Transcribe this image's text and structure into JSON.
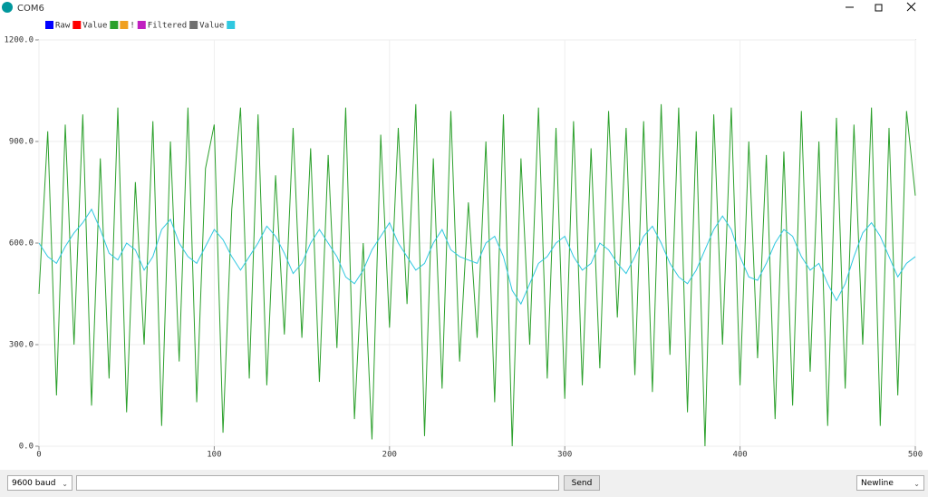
{
  "window": {
    "title": "COM6",
    "baud": "9600 baud",
    "send": "Send",
    "line_ending": "Newline"
  },
  "chart_data": {
    "type": "line",
    "series": [
      {
        "name": "Raw",
        "color": "#0000ff",
        "values": null
      },
      {
        "name": "Value",
        "color": "#ff0000",
        "values": null
      },
      {
        "name": null,
        "color": "#2ca02c",
        "values": [
          450,
          930,
          150,
          950,
          300,
          980,
          120,
          850,
          200,
          1000,
          100,
          780,
          300,
          960,
          60,
          900,
          250,
          1000,
          130,
          820,
          950,
          40,
          700,
          1000,
          200,
          980,
          180,
          800,
          330,
          940,
          320,
          880,
          190,
          860,
          290,
          1000,
          80,
          600,
          20,
          920,
          350,
          940,
          420,
          1010,
          30,
          850,
          170,
          990,
          250,
          720,
          320,
          900,
          130,
          980,
          0,
          850,
          300,
          1000,
          200,
          940,
          140,
          960,
          180,
          880,
          230,
          990,
          380,
          940,
          210,
          960,
          160,
          1010,
          270,
          1000,
          100,
          930,
          0,
          980,
          300,
          1000,
          180,
          900,
          260,
          860,
          80,
          870,
          120,
          990,
          220,
          900,
          60,
          970,
          170,
          950,
          300,
          1000,
          60,
          940,
          150,
          990,
          740
        ]
      },
      {
        "name": "!",
        "color": "#f0a020",
        "values": null
      },
      {
        "name": "Filtered",
        "color": "#c020c0",
        "values": null
      },
      {
        "name": "Value",
        "color": "#707070",
        "values": null
      },
      {
        "name": null,
        "color": "#30c8e0",
        "values": [
          600,
          560,
          540,
          590,
          630,
          660,
          700,
          640,
          570,
          550,
          600,
          580,
          520,
          560,
          640,
          670,
          600,
          560,
          540,
          590,
          640,
          610,
          560,
          520,
          560,
          600,
          650,
          620,
          570,
          510,
          540,
          600,
          640,
          600,
          560,
          500,
          480,
          520,
          580,
          620,
          660,
          600,
          560,
          520,
          540,
          600,
          640,
          580,
          560,
          550,
          540,
          600,
          620,
          560,
          460,
          420,
          480,
          540,
          560,
          600,
          620,
          560,
          520,
          540,
          600,
          580,
          540,
          510,
          560,
          620,
          650,
          600,
          540,
          500,
          480,
          520,
          580,
          640,
          680,
          640,
          560,
          500,
          490,
          540,
          600,
          640,
          620,
          560,
          520,
          540,
          480,
          430,
          480,
          560,
          630,
          660,
          620,
          560,
          500,
          540,
          560
        ]
      }
    ],
    "x": [
      0,
      5,
      10,
      15,
      20,
      25,
      30,
      35,
      40,
      45,
      50,
      55,
      60,
      65,
      70,
      75,
      80,
      85,
      90,
      95,
      100,
      105,
      110,
      115,
      120,
      125,
      130,
      135,
      140,
      145,
      150,
      155,
      160,
      165,
      170,
      175,
      180,
      185,
      190,
      195,
      200,
      205,
      210,
      215,
      220,
      225,
      230,
      235,
      240,
      245,
      250,
      255,
      260,
      265,
      270,
      275,
      280,
      285,
      290,
      295,
      300,
      305,
      310,
      315,
      320,
      325,
      330,
      335,
      340,
      345,
      350,
      355,
      360,
      365,
      370,
      375,
      380,
      385,
      390,
      395,
      400,
      405,
      410,
      415,
      420,
      425,
      430,
      435,
      440,
      445,
      450,
      455,
      460,
      465,
      470,
      475,
      480,
      485,
      490,
      495,
      500
    ],
    "xlim": [
      0,
      500
    ],
    "xticks": [
      0,
      100,
      200,
      300,
      400,
      500
    ],
    "ylim": [
      0,
      1200
    ],
    "yticks": [
      {
        "value": 0,
        "label": "0.0"
      },
      {
        "value": 300,
        "label": "300.0"
      },
      {
        "value": 600,
        "label": "600.0"
      },
      {
        "value": 900,
        "label": "900.0"
      },
      {
        "value": 1200,
        "label": "1200.0"
      }
    ],
    "grid": true
  }
}
